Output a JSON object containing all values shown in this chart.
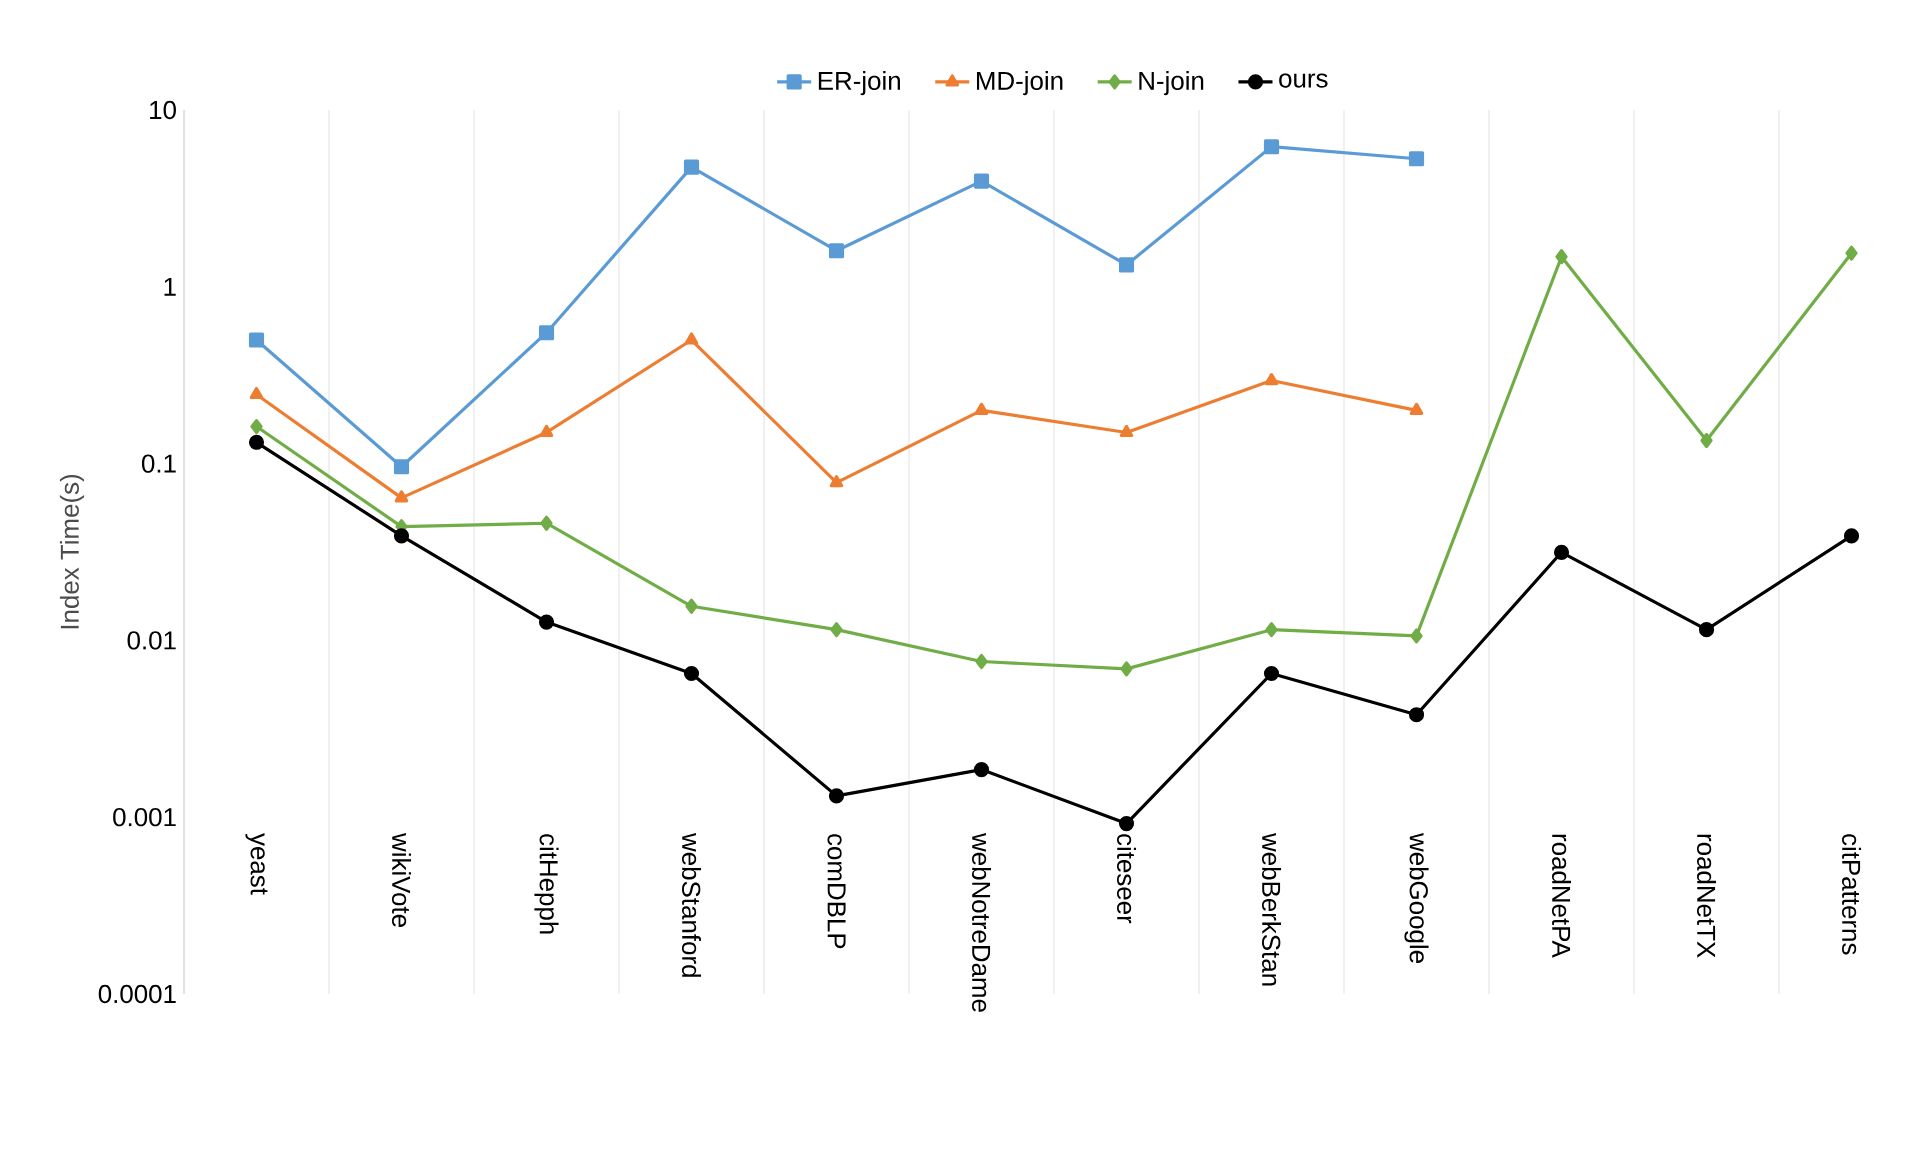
{
  "chart_data": {
    "type": "line",
    "ylabel": "Index Time(s)",
    "log": "y",
    "grid": "x",
    "legend": "top",
    "categories": [
      "yeast",
      "wikiVote",
      "citHepph",
      "webStanford",
      "comDBLP",
      "webNotreDame",
      "citeseer",
      "webBerkStan",
      "webGoogle",
      "roadNetPA",
      "roadNetTX",
      "citPatterns"
    ],
    "ylim": [
      0.0001,
      10
    ],
    "yticks": [
      0.0001,
      0.001,
      0.01,
      0.1,
      1,
      10
    ],
    "series": [
      {
        "name": "ER-join",
        "color": "#5b9bd5",
        "marker": "square",
        "values": [
          0.5,
          0.096,
          0.55,
          4.75,
          1.6,
          3.96,
          1.33,
          6.2,
          5.3,
          null,
          null,
          null
        ]
      },
      {
        "name": "MD-join",
        "color": "#ed7d31",
        "marker": "triangle",
        "values": [
          0.246,
          0.064,
          0.15,
          0.5,
          0.078,
          0.2,
          0.15,
          0.295,
          0.2,
          null,
          null,
          null
        ]
      },
      {
        "name": "N-join",
        "color": "#70ad47",
        "marker": "diamond",
        "values": [
          0.162,
          0.044,
          0.046,
          0.0156,
          0.0115,
          0.0076,
          0.0069,
          0.0115,
          0.0106,
          1.48,
          0.135,
          1.55
        ]
      },
      {
        "name": "ours",
        "color": "#000000",
        "marker": "circle",
        "values": [
          0.132,
          0.039,
          0.0127,
          0.0065,
          0.00132,
          0.00186,
          0.00092,
          0.0065,
          0.0038,
          0.0315,
          0.0115,
          0.039
        ]
      }
    ]
  }
}
